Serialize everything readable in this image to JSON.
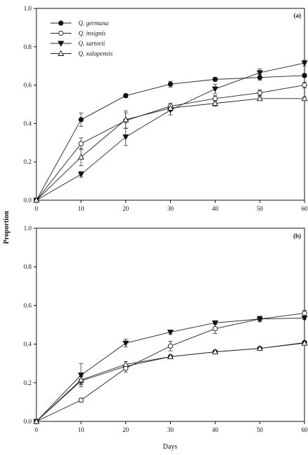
{
  "chart_data": [
    {
      "type": "line",
      "panel_label": "(a)",
      "x": [
        0,
        10,
        20,
        30,
        40,
        50,
        60
      ],
      "xlim": [
        0,
        60
      ],
      "ylim": [
        0,
        1.0
      ],
      "xticks": [
        "0",
        "10",
        "20",
        "30",
        "40",
        "50",
        "60"
      ],
      "yticks": [
        "0.0",
        "0.2",
        "0.4",
        "0.6",
        "0.8",
        "1.0"
      ],
      "xlabel": "",
      "ylabel": "",
      "legend_position": "top-left",
      "series": [
        {
          "name": "Q. germana",
          "marker": "filled-circle",
          "values": [
            0,
            0.42,
            0.545,
            0.605,
            0.63,
            0.64,
            0.65
          ],
          "errors": [
            0,
            0.035,
            0.01,
            0.015,
            0.01,
            0.015,
            0.01
          ]
        },
        {
          "name": "Q. insignis",
          "marker": "open-circle",
          "values": [
            0,
            0.295,
            0.415,
            0.49,
            0.53,
            0.56,
            0.6
          ],
          "errors": [
            0,
            0.03,
            0.04,
            0.015,
            0.015,
            0.015,
            0.015
          ]
        },
        {
          "name": "Q. sartorii",
          "marker": "filled-triangle-down",
          "values": [
            0,
            0.135,
            0.33,
            0.47,
            0.58,
            0.665,
            0.715
          ],
          "errors": [
            0,
            0.015,
            0.045,
            0.025,
            0.025,
            0.02,
            0.015
          ]
        },
        {
          "name": "Q. xalapensis",
          "marker": "open-triangle-up",
          "values": [
            0,
            0.225,
            0.42,
            0.48,
            0.505,
            0.53,
            0.53
          ],
          "errors": [
            0,
            0.045,
            0.045,
            0.015,
            0.015,
            0.01,
            0.008
          ]
        }
      ]
    },
    {
      "type": "line",
      "panel_label": "(b)",
      "x": [
        0,
        10,
        20,
        30,
        40,
        50,
        60
      ],
      "xlim": [
        0,
        60
      ],
      "ylim": [
        0,
        1.0
      ],
      "xticks": [
        "0",
        "10",
        "20",
        "30",
        "40",
        "50",
        "60"
      ],
      "yticks": [
        "0.0",
        "0.2",
        "0.4",
        "0.6",
        "0.8",
        "1.0"
      ],
      "xlabel": "Days",
      "ylabel": "",
      "series": [
        {
          "marker": "filled-circle",
          "values": [
            0,
            0.21,
            0.285,
            0.335,
            0.36,
            0.378,
            0.408
          ],
          "errors": [
            0,
            0.02,
            0.01,
            0.008,
            0.008,
            0.008,
            0.008
          ]
        },
        {
          "marker": "open-circle",
          "values": [
            0,
            0.11,
            0.275,
            0.39,
            0.48,
            0.53,
            0.56
          ],
          "errors": [
            0,
            0.01,
            0.02,
            0.025,
            0.025,
            0.015,
            0.015
          ]
        },
        {
          "marker": "filled-triangle-down",
          "values": [
            0,
            0.24,
            0.405,
            0.462,
            0.51,
            0.53,
            0.535
          ],
          "errors": [
            0,
            0.06,
            0.02,
            0.01,
            0.008,
            0.008,
            0.008
          ]
        },
        {
          "marker": "open-triangle-up",
          "values": [
            0,
            0.215,
            0.295,
            0.335,
            0.36,
            0.378,
            0.405
          ],
          "errors": [
            0,
            0.02,
            0.015,
            0.008,
            0.008,
            0.008,
            0.008
          ]
        }
      ]
    }
  ],
  "shared_ylabel": "Proportion"
}
